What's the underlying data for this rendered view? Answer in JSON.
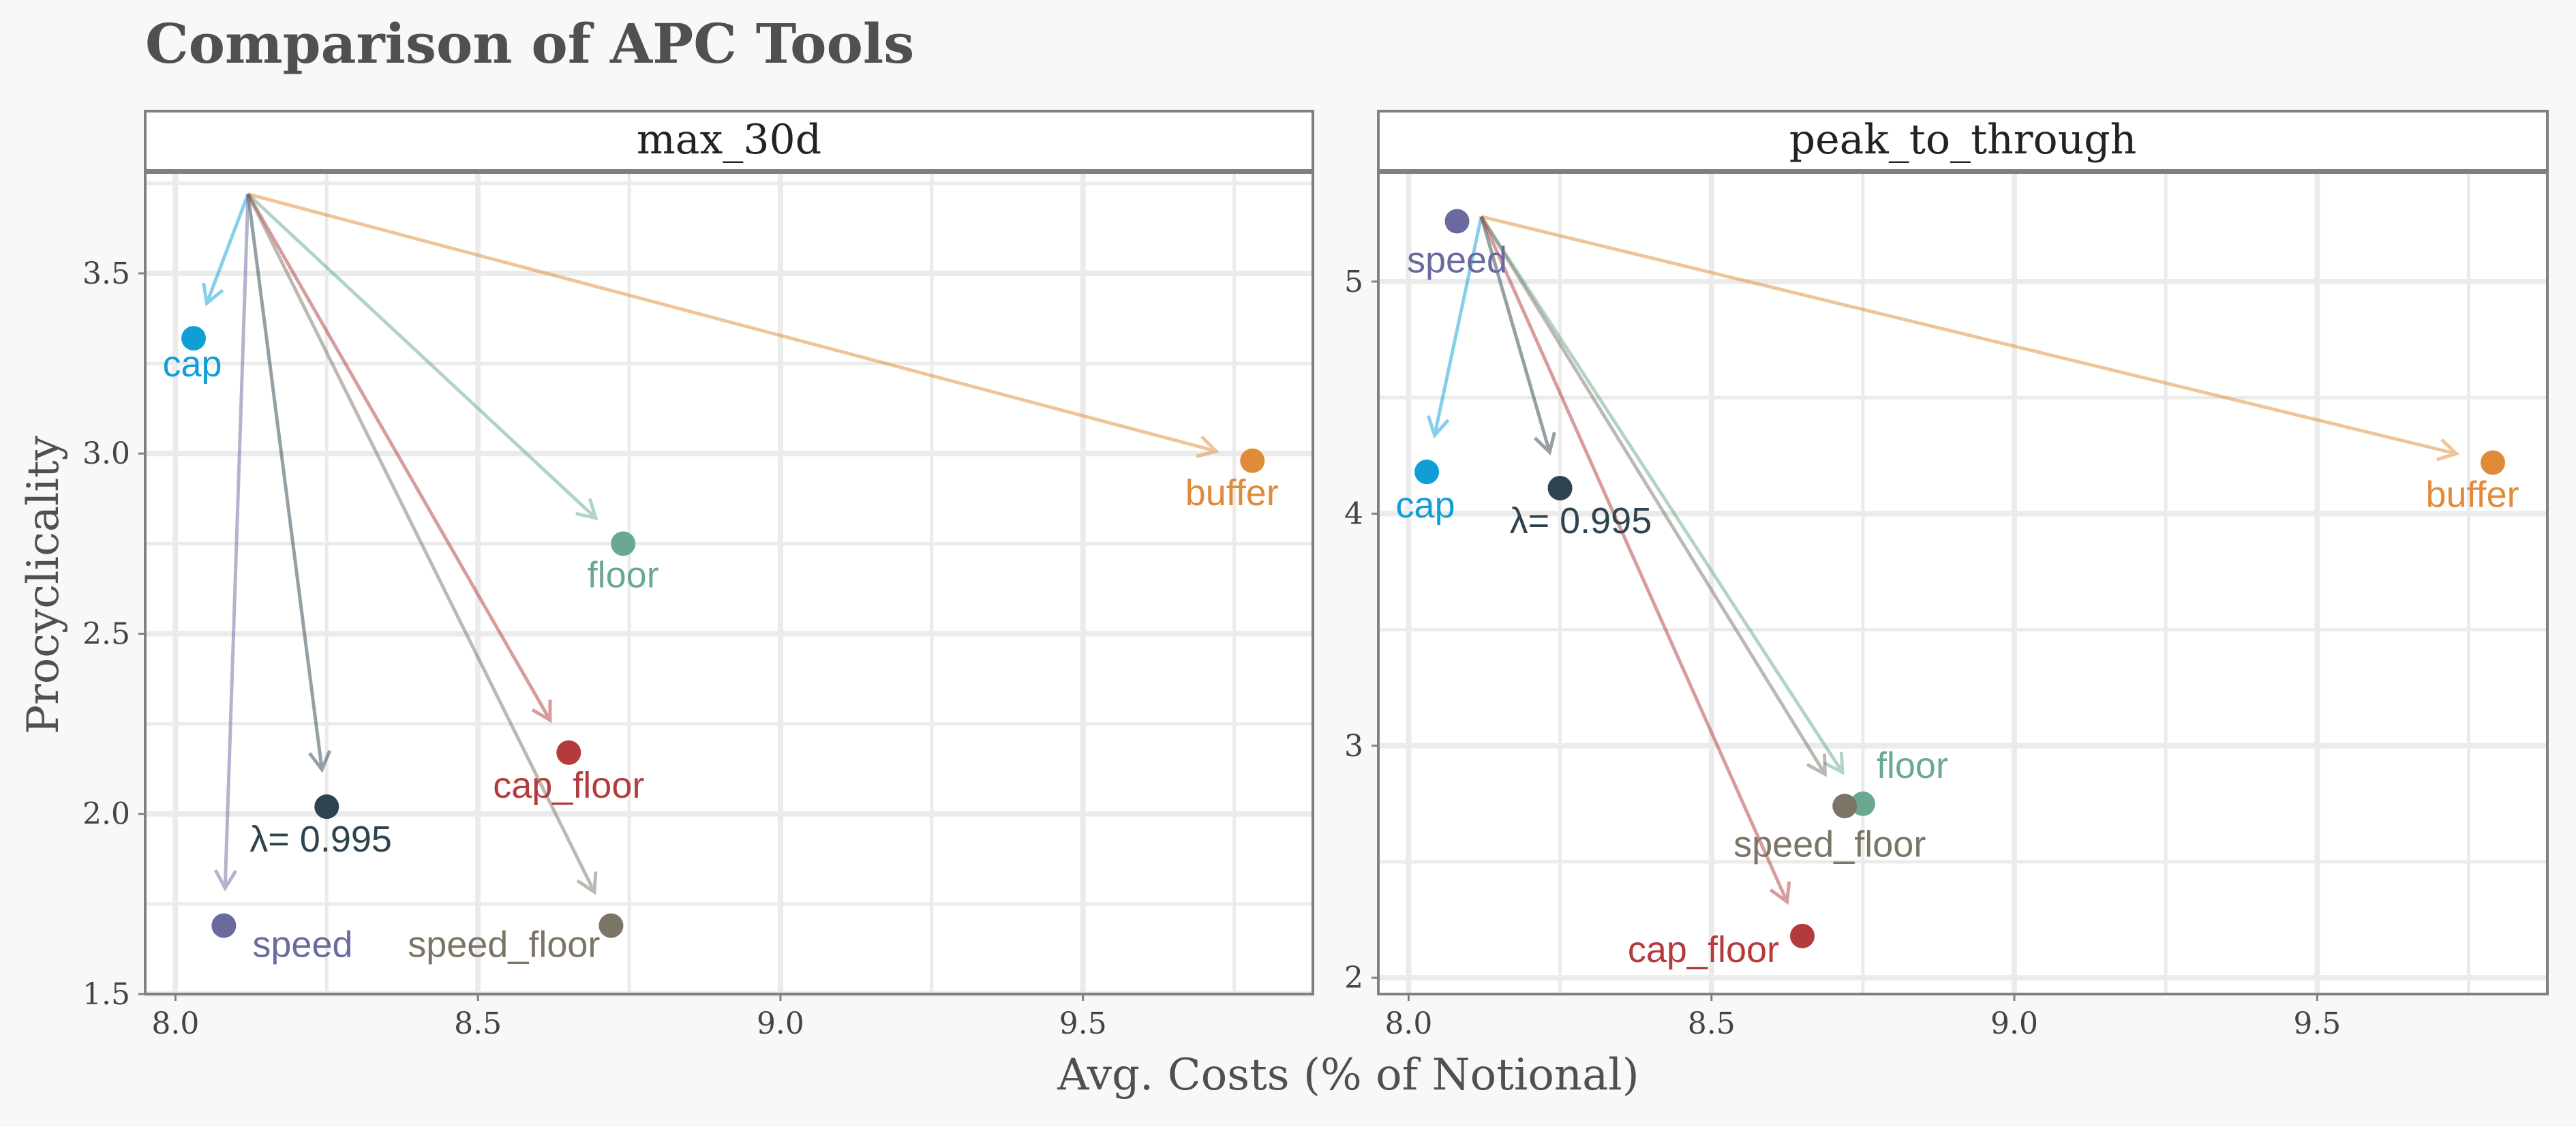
{
  "chart_data": {
    "type": "scatter",
    "title": "Comparison of APC Tools",
    "xlabel": "Avg. Costs (% of Notional)",
    "ylabel": "Procyclicality",
    "grid": true,
    "arrows": "from baseline to each tool",
    "panels": [
      {
        "name": "max_30d",
        "xlim": [
          7.95,
          9.88
        ],
        "ylim": [
          1.5,
          3.78
        ],
        "xticks": [
          "8.0",
          "8.5",
          "9.0",
          "9.5"
        ],
        "yticks": [
          "1.5",
          "2.0",
          "2.5",
          "3.0",
          "3.5"
        ],
        "origin": {
          "x": 8.12,
          "y": 3.72
        },
        "points": [
          {
            "label": "cap",
            "x": 8.03,
            "y": 3.32,
            "color": "#0f9fd6"
          },
          {
            "label": "buffer",
            "x": 9.78,
            "y": 2.98,
            "color": "#e08b3a"
          },
          {
            "label": "floor",
            "x": 8.74,
            "y": 2.75,
            "color": "#6aa991"
          },
          {
            "label": "cap_floor",
            "x": 8.65,
            "y": 2.17,
            "color": "#b33b3b"
          },
          {
            "label": "λ= 0.995",
            "x": 8.25,
            "y": 2.02,
            "color": "#2e4350"
          },
          {
            "label": "speed",
            "x": 8.08,
            "y": 1.69,
            "color": "#6a6a9e"
          },
          {
            "label": "speed_floor",
            "x": 8.72,
            "y": 1.69,
            "color": "#7a7565"
          }
        ]
      },
      {
        "name": "peak_to_through",
        "xlim": [
          7.95,
          9.88
        ],
        "ylim": [
          1.93,
          5.47
        ],
        "xticks": [
          "8.0",
          "8.5",
          "9.0",
          "9.5"
        ],
        "yticks": [
          "2",
          "3",
          "4",
          "5"
        ],
        "origin": {
          "x": 8.12,
          "y": 5.28
        },
        "points": [
          {
            "label": "speed",
            "x": 8.08,
            "y": 5.26,
            "color": "#6a6a9e"
          },
          {
            "label": "cap",
            "x": 8.03,
            "y": 4.18,
            "color": "#0f9fd6"
          },
          {
            "label": "buffer",
            "x": 9.79,
            "y": 4.22,
            "color": "#e08b3a"
          },
          {
            "label": "λ= 0.995",
            "x": 8.25,
            "y": 4.11,
            "color": "#2e4350"
          },
          {
            "label": "floor",
            "x": 8.75,
            "y": 2.75,
            "color": "#6aa991"
          },
          {
            "label": "speed_floor",
            "x": 8.72,
            "y": 2.74,
            "color": "#7a7565"
          },
          {
            "label": "cap_floor",
            "x": 8.65,
            "y": 2.18,
            "color": "#b33b3b"
          }
        ]
      }
    ]
  }
}
